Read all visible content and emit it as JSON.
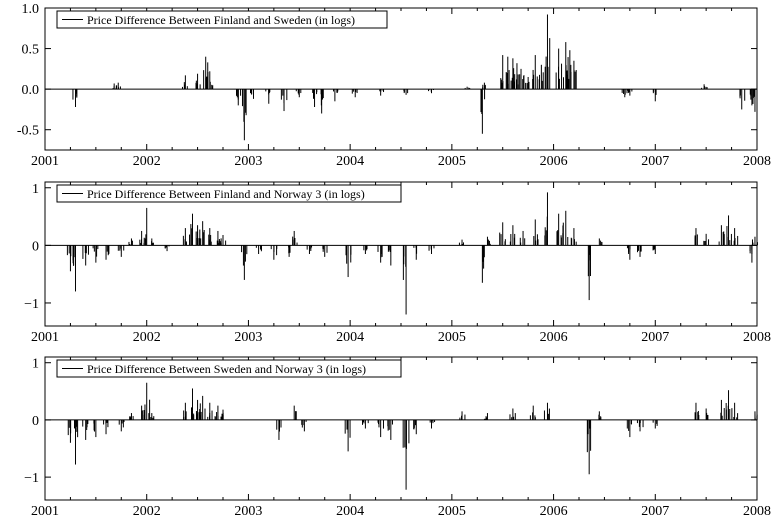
{
  "chart_data": [
    {
      "type": "line",
      "legend": "Price Difference Between Finland and Sweden (in logs)",
      "legend_position": "top-left",
      "xlim": [
        2001,
        2008
      ],
      "ylim": [
        -0.75,
        1.0
      ],
      "x_ticks": [
        "2001",
        "2002",
        "2003",
        "2004",
        "2005",
        "2006",
        "2007",
        "2008"
      ],
      "y_ticks": [
        "1.0",
        "0.5",
        "0.0",
        "-0.5"
      ],
      "y_tick_values": [
        1.0,
        0.5,
        0.0,
        -0.5
      ],
      "zero_line": true,
      "events": [
        {
          "x": 2001.3,
          "y": -0.22
        },
        {
          "x": 2001.68,
          "y": 0.07
        },
        {
          "x": 2001.72,
          "y": 0.08
        },
        {
          "x": 2002.38,
          "y": 0.17
        },
        {
          "x": 2002.5,
          "y": 0.19
        },
        {
          "x": 2002.58,
          "y": 0.4
        },
        {
          "x": 2002.6,
          "y": 0.33
        },
        {
          "x": 2002.62,
          "y": 0.22
        },
        {
          "x": 2002.9,
          "y": -0.2
        },
        {
          "x": 2002.96,
          "y": -0.63
        },
        {
          "x": 2003.05,
          "y": -0.12
        },
        {
          "x": 2003.2,
          "y": -0.18
        },
        {
          "x": 2003.35,
          "y": -0.27
        },
        {
          "x": 2003.5,
          "y": -0.1
        },
        {
          "x": 2003.65,
          "y": -0.22
        },
        {
          "x": 2003.72,
          "y": -0.3
        },
        {
          "x": 2003.85,
          "y": -0.15
        },
        {
          "x": 2004.05,
          "y": -0.1
        },
        {
          "x": 2004.3,
          "y": -0.08
        },
        {
          "x": 2004.55,
          "y": -0.07
        },
        {
          "x": 2004.8,
          "y": -0.05
        },
        {
          "x": 2005.15,
          "y": 0.03
        },
        {
          "x": 2005.3,
          "y": -0.55
        },
        {
          "x": 2005.32,
          "y": 0.08
        },
        {
          "x": 2005.5,
          "y": 0.42
        },
        {
          "x": 2005.55,
          "y": 0.4
        },
        {
          "x": 2005.6,
          "y": 0.38
        },
        {
          "x": 2005.64,
          "y": 0.32
        },
        {
          "x": 2005.68,
          "y": 0.25
        },
        {
          "x": 2005.75,
          "y": 0.15
        },
        {
          "x": 2005.82,
          "y": 0.42
        },
        {
          "x": 2005.88,
          "y": 0.3
        },
        {
          "x": 2005.94,
          "y": 0.92
        },
        {
          "x": 2006.05,
          "y": 0.5
        },
        {
          "x": 2006.12,
          "y": 0.58
        },
        {
          "x": 2006.16,
          "y": 0.48
        },
        {
          "x": 2006.2,
          "y": 0.35
        },
        {
          "x": 2006.7,
          "y": -0.1
        },
        {
          "x": 2006.75,
          "y": -0.08
        },
        {
          "x": 2007.0,
          "y": -0.15
        },
        {
          "x": 2007.48,
          "y": 0.06
        },
        {
          "x": 2007.85,
          "y": -0.25
        },
        {
          "x": 2007.95,
          "y": -0.2
        },
        {
          "x": 2007.98,
          "y": -0.28
        }
      ]
    },
    {
      "type": "line",
      "legend": "Price Difference Between Finland and Norway 3 (in logs)",
      "legend_position": "top-left",
      "xlim": [
        2001,
        2008
      ],
      "ylim": [
        -1.4,
        1.1
      ],
      "x_ticks": [
        "2001",
        "2002",
        "2003",
        "2004",
        "2005",
        "2006",
        "2007",
        "2008"
      ],
      "y_ticks": [
        "1",
        "0",
        "−1"
      ],
      "y_tick_values": [
        1,
        0,
        -1
      ],
      "zero_line": true,
      "events": [
        {
          "x": 2001.25,
          "y": -0.45
        },
        {
          "x": 2001.3,
          "y": -0.8
        },
        {
          "x": 2001.4,
          "y": -0.35
        },
        {
          "x": 2001.5,
          "y": -0.3
        },
        {
          "x": 2001.6,
          "y": -0.25
        },
        {
          "x": 2001.75,
          "y": -0.2
        },
        {
          "x": 2001.85,
          "y": 0.12
        },
        {
          "x": 2001.95,
          "y": 0.25
        },
        {
          "x": 2002.0,
          "y": 0.65
        },
        {
          "x": 2002.05,
          "y": 0.12
        },
        {
          "x": 2002.2,
          "y": -0.1
        },
        {
          "x": 2002.38,
          "y": 0.3
        },
        {
          "x": 2002.45,
          "y": 0.55
        },
        {
          "x": 2002.5,
          "y": 0.35
        },
        {
          "x": 2002.55,
          "y": 0.42
        },
        {
          "x": 2002.62,
          "y": 0.3
        },
        {
          "x": 2002.7,
          "y": 0.25
        },
        {
          "x": 2002.75,
          "y": 0.18
        },
        {
          "x": 2002.96,
          "y": -0.6
        },
        {
          "x": 2003.1,
          "y": -0.15
        },
        {
          "x": 2003.25,
          "y": -0.25
        },
        {
          "x": 2003.4,
          "y": -0.2
        },
        {
          "x": 2003.45,
          "y": 0.25
        },
        {
          "x": 2003.6,
          "y": -0.15
        },
        {
          "x": 2003.75,
          "y": -0.2
        },
        {
          "x": 2003.98,
          "y": -0.55
        },
        {
          "x": 2004.15,
          "y": -0.15
        },
        {
          "x": 2004.3,
          "y": -0.3
        },
        {
          "x": 2004.4,
          "y": -0.35
        },
        {
          "x": 2004.55,
          "y": -1.2
        },
        {
          "x": 2004.65,
          "y": -0.25
        },
        {
          "x": 2004.8,
          "y": -0.15
        },
        {
          "x": 2005.1,
          "y": 0.1
        },
        {
          "x": 2005.3,
          "y": -0.65
        },
        {
          "x": 2005.35,
          "y": 0.15
        },
        {
          "x": 2005.5,
          "y": 0.4
        },
        {
          "x": 2005.6,
          "y": 0.35
        },
        {
          "x": 2005.7,
          "y": 0.25
        },
        {
          "x": 2005.82,
          "y": 0.45
        },
        {
          "x": 2005.94,
          "y": 0.92
        },
        {
          "x": 2006.05,
          "y": 0.55
        },
        {
          "x": 2006.12,
          "y": 0.6
        },
        {
          "x": 2006.2,
          "y": 0.3
        },
        {
          "x": 2006.35,
          "y": -0.95
        },
        {
          "x": 2006.45,
          "y": 0.12
        },
        {
          "x": 2006.75,
          "y": -0.25
        },
        {
          "x": 2006.85,
          "y": -0.2
        },
        {
          "x": 2007.0,
          "y": -0.15
        },
        {
          "x": 2007.4,
          "y": 0.3
        },
        {
          "x": 2007.5,
          "y": 0.2
        },
        {
          "x": 2007.65,
          "y": 0.35
        },
        {
          "x": 2007.72,
          "y": 0.52
        },
        {
          "x": 2007.78,
          "y": 0.3
        },
        {
          "x": 2007.95,
          "y": -0.3
        },
        {
          "x": 2007.98,
          "y": 0.15
        }
      ]
    },
    {
      "type": "line",
      "legend": "Price Difference Between Sweden and Norway 3 (in logs)",
      "legend_position": "top-left",
      "xlim": [
        2001,
        2008
      ],
      "ylim": [
        -1.4,
        1.1
      ],
      "x_ticks": [
        "2001",
        "2002",
        "2003",
        "2004",
        "2005",
        "2006",
        "2007",
        "2008"
      ],
      "y_ticks": [
        "1",
        "0",
        "−1"
      ],
      "y_tick_values": [
        1,
        0,
        -1
      ],
      "zero_line": true,
      "events": [
        {
          "x": 2001.25,
          "y": -0.4
        },
        {
          "x": 2001.3,
          "y": -0.78
        },
        {
          "x": 2001.4,
          "y": -0.35
        },
        {
          "x": 2001.5,
          "y": -0.3
        },
        {
          "x": 2001.6,
          "y": -0.25
        },
        {
          "x": 2001.75,
          "y": -0.2
        },
        {
          "x": 2001.85,
          "y": 0.12
        },
        {
          "x": 2001.95,
          "y": 0.25
        },
        {
          "x": 2002.0,
          "y": 0.65
        },
        {
          "x": 2002.05,
          "y": 0.12
        },
        {
          "x": 2002.38,
          "y": 0.3
        },
        {
          "x": 2002.45,
          "y": 0.55
        },
        {
          "x": 2002.5,
          "y": 0.35
        },
        {
          "x": 2002.55,
          "y": 0.42
        },
        {
          "x": 2002.62,
          "y": 0.3
        },
        {
          "x": 2002.7,
          "y": 0.25
        },
        {
          "x": 2002.75,
          "y": 0.18
        },
        {
          "x": 2003.3,
          "y": -0.35
        },
        {
          "x": 2003.45,
          "y": 0.25
        },
        {
          "x": 2003.55,
          "y": -0.2
        },
        {
          "x": 2003.98,
          "y": -0.55
        },
        {
          "x": 2004.15,
          "y": -0.15
        },
        {
          "x": 2004.3,
          "y": -0.3
        },
        {
          "x": 2004.4,
          "y": -0.35
        },
        {
          "x": 2004.55,
          "y": -1.22
        },
        {
          "x": 2004.65,
          "y": -0.25
        },
        {
          "x": 2004.8,
          "y": -0.15
        },
        {
          "x": 2005.1,
          "y": 0.15
        },
        {
          "x": 2005.35,
          "y": 0.12
        },
        {
          "x": 2005.6,
          "y": 0.2
        },
        {
          "x": 2005.8,
          "y": 0.25
        },
        {
          "x": 2005.94,
          "y": 0.3
        },
        {
          "x": 2006.35,
          "y": -0.95
        },
        {
          "x": 2006.45,
          "y": 0.15
        },
        {
          "x": 2006.75,
          "y": -0.3
        },
        {
          "x": 2006.85,
          "y": -0.2
        },
        {
          "x": 2007.0,
          "y": -0.15
        },
        {
          "x": 2007.4,
          "y": 0.3
        },
        {
          "x": 2007.5,
          "y": 0.2
        },
        {
          "x": 2007.65,
          "y": 0.35
        },
        {
          "x": 2007.72,
          "y": 0.52
        },
        {
          "x": 2007.78,
          "y": 0.3
        },
        {
          "x": 2007.98,
          "y": 0.15
        }
      ]
    }
  ]
}
